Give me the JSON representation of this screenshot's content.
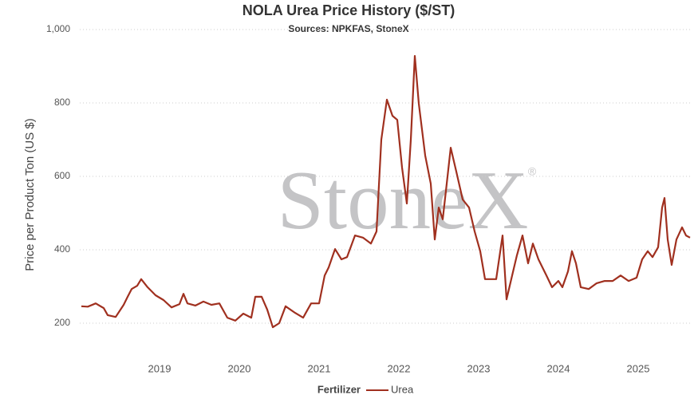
{
  "chart_data": {
    "type": "line",
    "title": "NOLA Urea Price History ($/ST)",
    "subtitle": "Sources: NPKFAS, StoneX",
    "y_label": "Price per Product Ton (US $)",
    "watermark": "StoneX",
    "watermark_mark": "®",
    "legend_title": "Fertilizer",
    "legend": "bottom",
    "x": [
      2018.02,
      2018.1,
      2018.2,
      2018.3,
      2018.35,
      2018.45,
      2018.55,
      2018.6,
      2018.65,
      2018.72,
      2018.77,
      2018.85,
      2018.95,
      2019.05,
      2019.15,
      2019.25,
      2019.3,
      2019.35,
      2019.45,
      2019.55,
      2019.65,
      2019.75,
      2019.85,
      2019.95,
      2020.05,
      2020.15,
      2020.2,
      2020.28,
      2020.35,
      2020.42,
      2020.5,
      2020.58,
      2020.7,
      2020.8,
      2020.9,
      2021.0,
      2021.07,
      2021.12,
      2021.2,
      2021.28,
      2021.35,
      2021.45,
      2021.55,
      2021.65,
      2021.72,
      2021.78,
      2021.85,
      2021.92,
      2021.98,
      2022.04,
      2022.1,
      2022.15,
      2022.2,
      2022.25,
      2022.33,
      2022.4,
      2022.45,
      2022.5,
      2022.55,
      2022.6,
      2022.65,
      2022.72,
      2022.8,
      2022.88,
      2022.95,
      2023.02,
      2023.08,
      2023.15,
      2023.22,
      2023.3,
      2023.35,
      2023.42,
      2023.48,
      2023.55,
      2023.62,
      2023.68,
      2023.75,
      2023.85,
      2023.92,
      2024.0,
      2024.05,
      2024.12,
      2024.17,
      2024.22,
      2024.28,
      2024.38,
      2024.48,
      2024.58,
      2024.68,
      2024.78,
      2024.88,
      2024.98,
      2025.05,
      2025.12,
      2025.18,
      2025.25,
      2025.3,
      2025.33,
      2025.37,
      2025.42,
      2025.48,
      2025.55,
      2025.6,
      2025.65
    ],
    "series": [
      {
        "name": "Urea",
        "color": "#a0301f",
        "values": [
          246,
          245,
          254,
          241,
          222,
          217,
          250,
          272,
          293,
          302,
          320,
          298,
          276,
          263,
          243,
          252,
          280,
          254,
          248,
          259,
          250,
          254,
          215,
          207,
          226,
          215,
          272,
          272,
          237,
          189,
          200,
          246,
          228,
          215,
          254,
          254,
          330,
          352,
          402,
          374,
          380,
          439,
          433,
          417,
          450,
          700,
          809,
          765,
          754,
          624,
          526,
          700,
          928,
          798,
          657,
          580,
          428,
          515,
          483,
          580,
          678,
          613,
          537,
          515,
          450,
          396,
          320,
          320,
          320,
          439,
          265,
          330,
          385,
          439,
          363,
          417,
          374,
          330,
          298,
          315,
          298,
          341,
          396,
          363,
          298,
          293,
          309,
          315,
          315,
          330,
          315,
          324,
          374,
          396,
          380,
          407,
          515,
          541,
          428,
          359,
          428,
          461,
          439,
          433
        ]
      }
    ],
    "xlim": [
      2018.0,
      2025.68
    ],
    "xticks": [
      2019,
      2020,
      2021,
      2022,
      2023,
      2024,
      2025
    ],
    "ylim": [
      100,
      1000
    ],
    "yticks": [
      200,
      400,
      600,
      800,
      {
        "value": 1000,
        "label": "1,000"
      }
    ],
    "grid": true
  }
}
